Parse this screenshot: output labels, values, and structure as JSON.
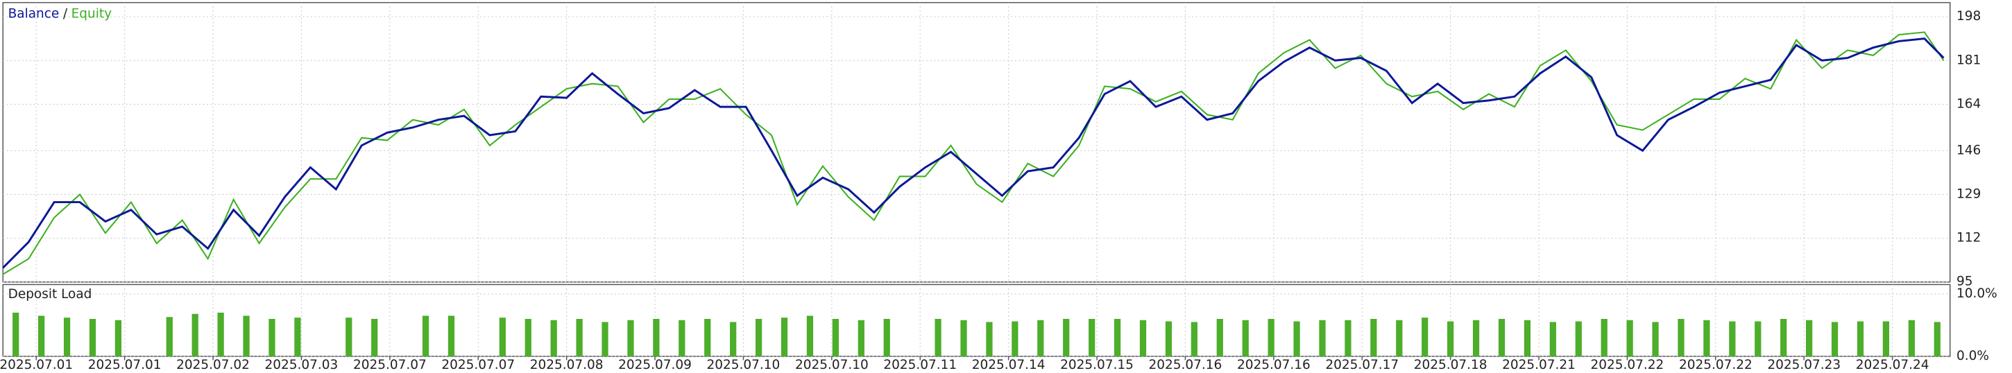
{
  "chart_data": [
    {
      "type": "line",
      "legend_separator": "/",
      "x": [
        0,
        2,
        4,
        6,
        8,
        10,
        12,
        14,
        16,
        18,
        20,
        22,
        24,
        26,
        28,
        30,
        32,
        34,
        36,
        38,
        40,
        42,
        44,
        46,
        48,
        50,
        52,
        54,
        56,
        58,
        60,
        62,
        64,
        66,
        68,
        70,
        72,
        74,
        76,
        78,
        80,
        82,
        84,
        86,
        88,
        90,
        92,
        94,
        96,
        98,
        100,
        102,
        104,
        106,
        108,
        110,
        112,
        114,
        116,
        118,
        120,
        122,
        124,
        126,
        128,
        130,
        132,
        134,
        136,
        138,
        140,
        142,
        144,
        146,
        148,
        150,
        151.5
      ],
      "xlim": [
        0,
        152
      ],
      "ylim": [
        95,
        203.5
      ],
      "yticks": [
        95,
        112,
        129,
        146,
        164,
        181,
        198
      ],
      "grid": true,
      "series": [
        {
          "name": "Balance",
          "color": "#0b1896",
          "values": [
            100.5,
            110.5,
            126,
            126,
            118.5,
            123,
            113.5,
            116.5,
            108,
            123,
            113,
            128,
            139.5,
            131,
            148,
            153,
            155,
            158,
            159.5,
            152,
            153.5,
            167,
            166.5,
            176,
            168,
            160.5,
            162.5,
            169.5,
            163,
            163,
            146,
            128.5,
            135.5,
            131,
            122,
            132,
            139.5,
            145.5,
            137,
            128.5,
            138,
            139.5,
            151,
            168,
            173,
            163,
            167,
            158,
            160.5,
            173,
            180.5,
            186,
            181,
            182,
            177,
            164.5,
            172,
            164.5,
            165.5,
            167,
            176,
            182.5,
            174.5,
            152,
            146,
            158,
            163,
            168.5,
            171,
            173.5,
            187,
            181,
            182,
            186,
            188.5,
            189.5,
            182
          ]
        },
        {
          "name": "Equity",
          "color": "#3cb01e",
          "values": [
            98,
            104,
            120,
            129,
            114,
            126,
            110,
            119,
            104,
            127,
            110,
            124,
            135,
            135,
            151,
            150,
            158,
            156,
            162,
            148,
            156,
            163,
            170,
            172,
            171,
            157,
            166,
            166,
            170,
            160,
            152,
            125,
            140,
            128,
            119,
            136,
            136,
            148,
            133,
            126,
            141,
            136,
            148,
            171,
            170,
            165,
            169,
            160,
            158,
            176,
            184,
            189,
            178,
            183,
            172,
            167,
            169,
            162,
            168,
            163,
            179,
            185,
            173,
            156,
            154,
            160,
            166,
            166,
            174,
            170,
            189,
            178,
            185,
            183,
            191,
            192,
            181
          ]
        }
      ]
    },
    {
      "type": "bar",
      "title": "Deposit Load",
      "color": "#4cae2a",
      "x": [
        1,
        3,
        5,
        7,
        9,
        11,
        13,
        15,
        17,
        19,
        21,
        23,
        25,
        27,
        29,
        31,
        33,
        35,
        37,
        39,
        41,
        43,
        45,
        47,
        49,
        51,
        53,
        55,
        57,
        59,
        61,
        63,
        65,
        67,
        69,
        71,
        73,
        75,
        77,
        79,
        81,
        83,
        85,
        87,
        89,
        91,
        93,
        95,
        97,
        99,
        101,
        103,
        105,
        107,
        109,
        111,
        113,
        115,
        117,
        119,
        121,
        123,
        125,
        127,
        129,
        131,
        133,
        135,
        137,
        139,
        141,
        143,
        145,
        147,
        149,
        151
      ],
      "values": [
        7.0,
        6.5,
        6.2,
        6.0,
        5.8,
        0,
        6.3,
        6.8,
        7.0,
        6.5,
        6.0,
        6.2,
        0,
        6.2,
        6.0,
        0,
        6.5,
        6.5,
        0,
        6.2,
        6.0,
        5.8,
        6.0,
        5.5,
        5.8,
        6.0,
        5.8,
        6.0,
        5.5,
        6.0,
        6.2,
        6.5,
        6.0,
        5.8,
        6.0,
        0,
        6.0,
        5.8,
        5.5,
        5.6,
        5.8,
        6.0,
        6.0,
        6.0,
        5.8,
        5.6,
        5.5,
        6.0,
        5.8,
        6.0,
        5.6,
        5.8,
        5.8,
        6.0,
        5.8,
        6.2,
        5.6,
        5.8,
        6.0,
        5.8,
        5.5,
        5.6,
        6.0,
        5.8,
        5.5,
        6.0,
        5.8,
        5.6,
        5.6,
        6.0,
        5.8,
        5.5,
        5.6,
        5.6,
        5.8,
        5.5
      ],
      "xlim": [
        0,
        152
      ],
      "xticks": [
        {
          "value": 2.6,
          "label": "2025.07.01"
        },
        {
          "value": 9.5,
          "label": "2025.07.01"
        },
        {
          "value": 16.4,
          "label": "2025.07.02"
        },
        {
          "value": 23.3,
          "label": "2025.07.03"
        },
        {
          "value": 30.2,
          "label": "2025.07.07"
        },
        {
          "value": 37.1,
          "label": "2025.07.07"
        },
        {
          "value": 44,
          "label": "2025.07.08"
        },
        {
          "value": 50.9,
          "label": "2025.07.09"
        },
        {
          "value": 57.8,
          "label": "2025.07.10"
        },
        {
          "value": 64.7,
          "label": "2025.07.10"
        },
        {
          "value": 71.6,
          "label": "2025.07.11"
        },
        {
          "value": 78.5,
          "label": "2025.07.14"
        },
        {
          "value": 85.4,
          "label": "2025.07.15"
        },
        {
          "value": 92.3,
          "label": "2025.07.16"
        },
        {
          "value": 99.2,
          "label": "2025.07.16"
        },
        {
          "value": 106.1,
          "label": "2025.07.17"
        },
        {
          "value": 113,
          "label": "2025.07.18"
        },
        {
          "value": 119.9,
          "label": "2025.07.21"
        },
        {
          "value": 126.8,
          "label": "2025.07.22"
        },
        {
          "value": 133.7,
          "label": "2025.07.22"
        },
        {
          "value": 140.6,
          "label": "2025.07.23"
        },
        {
          "value": 147.5,
          "label": "2025.07.24"
        }
      ],
      "ylim": [
        0,
        11.5
      ],
      "yticks": [
        {
          "value": 0,
          "label": "0.0%"
        },
        {
          "value": 10,
          "label": "10.0%"
        }
      ],
      "grid": true
    }
  ]
}
